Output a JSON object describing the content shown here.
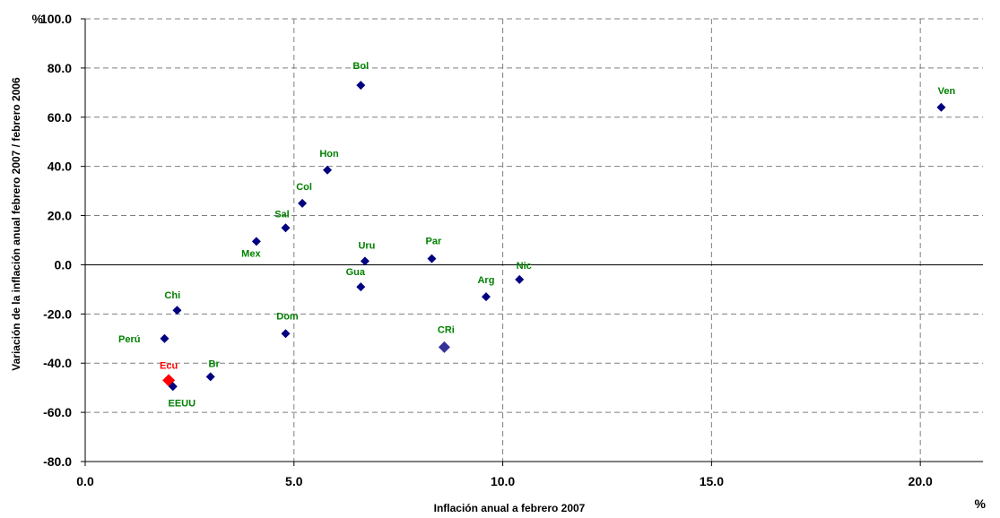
{
  "chart_data": {
    "type": "scatter",
    "title": "",
    "xlabel": "Inflación anual a febrero 2007",
    "ylabel": "Variación de la inflación anual febrero 2007 / febrero 2006",
    "x_unit": "%",
    "y_unit": "%",
    "xlim": [
      0,
      21.5
    ],
    "ylim": [
      -80,
      100
    ],
    "x_ticks": [
      "0.0",
      "5.0",
      "10.0",
      "15.0",
      "20.0"
    ],
    "y_ticks": [
      "100.0",
      "80.0",
      "60.0",
      "40.0",
      "20.0",
      "0.0",
      "-20.0",
      "-40.0",
      "-60.0",
      "-80.0"
    ],
    "grid": true,
    "colors": {
      "default": "#000080",
      "highlight": "#ff0000",
      "label": "#008000",
      "special": "#333399"
    },
    "points": [
      {
        "label": "Bol",
        "x": 6.6,
        "y": 73.0
      },
      {
        "label": "Ven",
        "x": 20.5,
        "y": 64.0
      },
      {
        "label": "Hon",
        "x": 5.8,
        "y": 38.5
      },
      {
        "label": "Col",
        "x": 5.2,
        "y": 25.0
      },
      {
        "label": "Sal",
        "x": 4.8,
        "y": 15.0
      },
      {
        "label": "Mex",
        "x": 4.1,
        "y": 9.5
      },
      {
        "label": "Uru",
        "x": 6.7,
        "y": 1.5
      },
      {
        "label": "Par",
        "x": 8.3,
        "y": 2.5
      },
      {
        "label": "Gua",
        "x": 6.6,
        "y": -9.0
      },
      {
        "label": "Nic",
        "x": 10.4,
        "y": -6.0
      },
      {
        "label": "Arg",
        "x": 9.6,
        "y": -13.0
      },
      {
        "label": "Chi",
        "x": 2.2,
        "y": -18.5
      },
      {
        "label": "Dom",
        "x": 4.8,
        "y": -28.0
      },
      {
        "label": "Perú",
        "x": 1.9,
        "y": -30.0
      },
      {
        "label": "CRi",
        "x": 8.6,
        "y": -33.5
      },
      {
        "label": "Br",
        "x": 3.0,
        "y": -45.5
      },
      {
        "label": "Ecu",
        "x": 2.0,
        "y": -47.0
      },
      {
        "label": "EEUU",
        "x": 2.1,
        "y": -49.5
      }
    ]
  }
}
